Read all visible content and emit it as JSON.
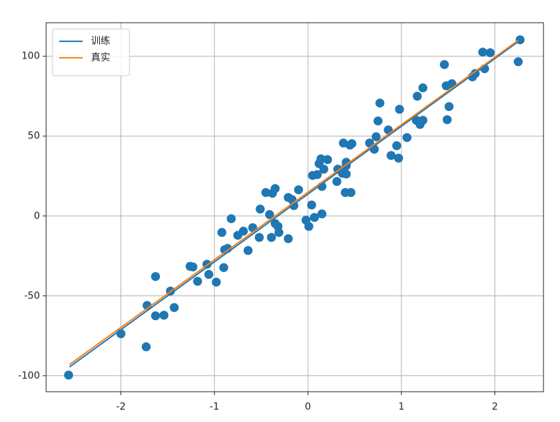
{
  "chart_data": {
    "type": "scatter",
    "xlim": [
      -2.8,
      2.52
    ],
    "ylim": [
      -110,
      121
    ],
    "xticks": [
      -2,
      -1,
      0,
      1,
      2
    ],
    "yticks": [
      -100,
      -50,
      0,
      50,
      100
    ],
    "grid": true,
    "legend": "upper left",
    "points": {
      "color": "#1f77b4",
      "x": [
        -2.56,
        -2.0,
        -1.73,
        -1.72,
        -1.63,
        -1.63,
        -1.54,
        -1.47,
        -1.43,
        -1.26,
        -1.23,
        -1.18,
        -1.08,
        -1.06,
        -0.98,
        -0.92,
        -0.9,
        -0.89,
        -0.86,
        -0.82,
        -0.75,
        -0.69,
        -0.64,
        -0.59,
        -0.52,
        -0.51,
        -0.45,
        -0.41,
        -0.39,
        -0.38,
        -0.35,
        -0.35,
        -0.32,
        -0.31,
        -0.21,
        -0.21,
        -0.17,
        -0.15,
        -0.1,
        -0.02,
        0.01,
        0.04,
        0.07,
        0.05,
        0.1,
        0.12,
        0.14,
        0.15,
        0.15,
        0.17,
        0.21,
        0.31,
        0.32,
        0.37,
        0.38,
        0.4,
        0.41,
        0.41,
        0.41,
        0.45,
        0.46,
        0.47,
        0.66,
        0.71,
        0.73,
        0.75,
        0.77,
        0.86,
        0.89,
        0.95,
        0.97,
        0.98,
        1.06,
        1.16,
        1.17,
        1.2,
        1.23,
        1.23,
        1.46,
        1.48,
        1.49,
        1.51,
        1.54,
        1.76,
        1.79,
        1.87,
        1.89,
        1.95,
        2.25,
        2.27
      ],
      "y": [
        -99.6,
        -73.7,
        -81.9,
        -56.0,
        -37.9,
        -62.5,
        -62.1,
        -47.0,
        -57.3,
        -31.5,
        -31.9,
        -40.9,
        -30.2,
        -36.6,
        -41.4,
        -10.3,
        -32.3,
        -21.1,
        -20.3,
        -1.7,
        -12.1,
        -9.5,
        -21.6,
        -7.3,
        -13.4,
        4.3,
        14.7,
        0.9,
        -13.4,
        14.2,
        17.2,
        -4.7,
        -6.5,
        -10.3,
        -14.2,
        11.6,
        10.3,
        6.5,
        16.4,
        -2.6,
        -6.5,
        6.9,
        -0.9,
        25.4,
        25.9,
        32.8,
        35.8,
        18.5,
        1.3,
        29.3,
        35.3,
        21.6,
        29.3,
        26.7,
        45.7,
        14.7,
        33.6,
        31.5,
        26.3,
        44.4,
        14.7,
        45.3,
        45.7,
        41.8,
        49.6,
        59.5,
        70.7,
        53.9,
        37.9,
        44.0,
        36.2,
        66.8,
        49.1,
        59.9,
        75.0,
        57.3,
        59.9,
        80.2,
        94.8,
        81.5,
        60.3,
        68.5,
        82.8,
        87.1,
        89.2,
        102.6,
        92.2,
        102.2,
        96.6,
        110.3
      ]
    },
    "series": [
      {
        "name": "训练",
        "color": "#1f77b4",
        "x": [
          -2.55,
          2.25
        ],
        "values": [
          -94.5,
          109.2
        ]
      },
      {
        "name": "真实",
        "color": "#ff7f0e",
        "x": [
          -2.55,
          2.25
        ],
        "values": [
          -93.0,
          110.0
        ]
      }
    ]
  }
}
